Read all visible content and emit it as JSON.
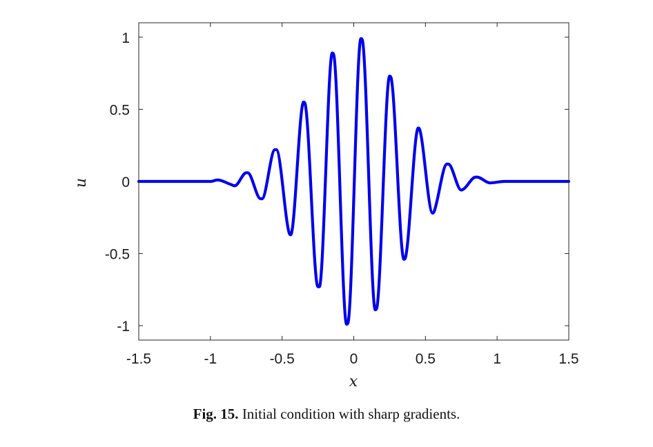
{
  "chart_data": {
    "type": "line",
    "xlabel": "x",
    "ylabel": "u",
    "xlim": [
      -1.5,
      1.5
    ],
    "ylim": [
      -1.1,
      1.1
    ],
    "x_ticks": [
      -1.5,
      -1,
      -0.5,
      0,
      0.5,
      1,
      1.5
    ],
    "x_tick_labels": [
      "-1.5",
      "-1",
      "-0.5",
      "0",
      "0.5",
      "1",
      "1.5"
    ],
    "y_ticks": [
      1,
      0.5,
      0,
      -0.5,
      -1
    ],
    "y_tick_labels": [
      "1",
      "0.5",
      "0",
      "-0.5",
      "-1"
    ],
    "grid": false,
    "series": [
      {
        "color": "#0000ee",
        "x": [
          -1.5,
          -1.2,
          -1.0,
          -0.95,
          -0.86,
          -0.83,
          -0.75,
          -0.74,
          -0.65,
          -0.64,
          -0.55,
          -0.54,
          -0.45,
          -0.44,
          -0.35,
          -0.34,
          -0.25,
          -0.24,
          -0.15,
          -0.14,
          -0.05,
          -0.04,
          0.05,
          0.06,
          0.15,
          0.16,
          0.25,
          0.26,
          0.35,
          0.36,
          0.45,
          0.46,
          0.55,
          0.56,
          0.65,
          0.66,
          0.75,
          0.77,
          0.85,
          0.86,
          0.95,
          1.05,
          1.2,
          1.5
        ],
        "y": [
          0,
          0,
          0,
          0.01,
          -0.02,
          -0.03,
          0.06,
          0.06,
          -0.12,
          -0.12,
          0.22,
          0.22,
          -0.36,
          -0.37,
          0.55,
          0.54,
          -0.73,
          -0.73,
          0.89,
          0.88,
          -0.99,
          -0.98,
          0.99,
          0.98,
          -0.89,
          -0.88,
          0.73,
          0.72,
          -0.54,
          -0.53,
          0.37,
          0.36,
          -0.22,
          -0.21,
          0.12,
          0.12,
          -0.06,
          -0.05,
          0.03,
          0.03,
          -0.01,
          0,
          0,
          0
        ]
      }
    ]
  },
  "caption": {
    "label": "Fig. 15.",
    "text": "Initial condition with sharp gradients."
  }
}
